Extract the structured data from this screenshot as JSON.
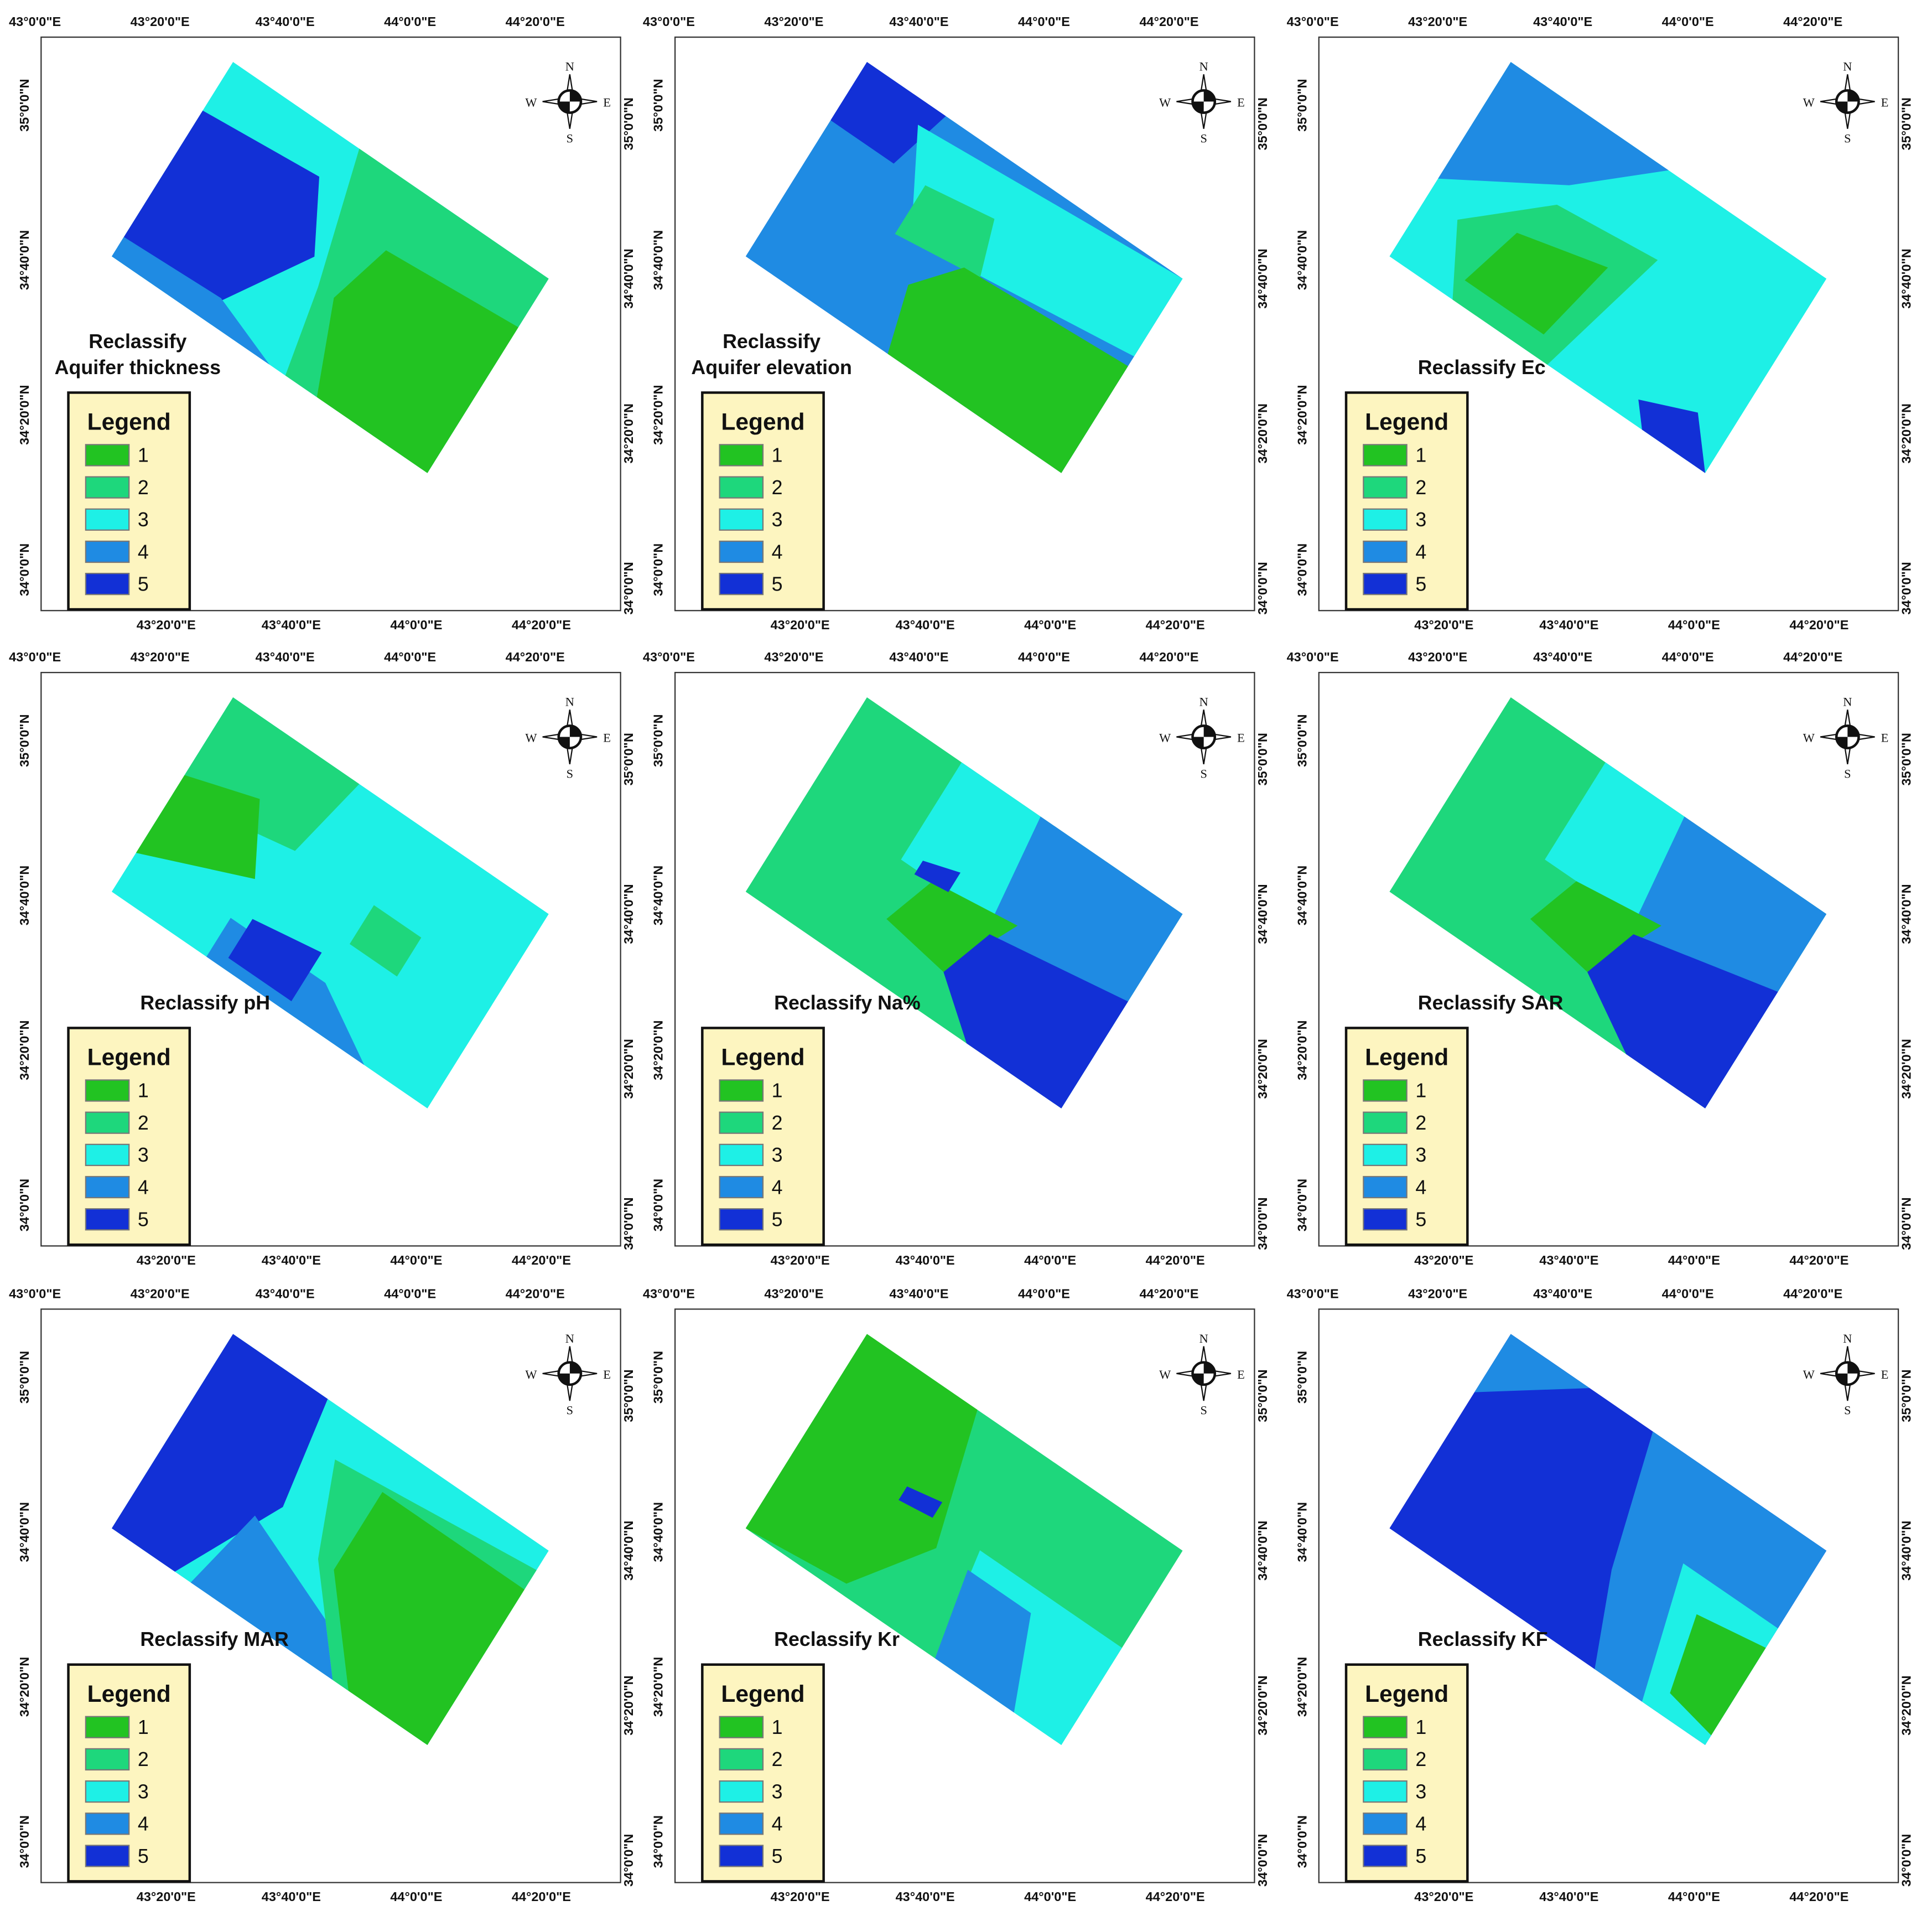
{
  "compass": {
    "n": "N",
    "s": "S",
    "e": "E",
    "w": "W"
  },
  "lon_labels": [
    "43°0'0\"E",
    "43°20'0\"E",
    "43°40'0\"E",
    "44°0'0\"E",
    "44°20'0\"E"
  ],
  "lat_labels": [
    "35°0'0\"N",
    "34°40'0\"N",
    "34°20'0\"N",
    "34°0'0\"N"
  ],
  "legend": {
    "title": "Legend",
    "classes": [
      {
        "label": "1",
        "color": "#22c322"
      },
      {
        "label": "2",
        "color": "#1ed77c"
      },
      {
        "label": "3",
        "color": "#1ef0e6"
      },
      {
        "label": "4",
        "color": "#1f8be3"
      },
      {
        "label": "5",
        "color": "#1230d6"
      }
    ]
  },
  "panels": [
    {
      "title": [
        "Reclassify",
        "Aquifer thickness"
      ]
    },
    {
      "title": [
        "Reclassify",
        "Aquifer elevation"
      ]
    },
    {
      "title": [
        "Reclassify Ec"
      ]
    },
    {
      "title": [
        "Reclassify pH"
      ]
    },
    {
      "title": [
        "Reclassify Na%"
      ]
    },
    {
      "title": [
        "Reclassify SAR"
      ]
    },
    {
      "title": [
        "Reclassify MAR"
      ]
    },
    {
      "title": [
        "Reclassify Kr"
      ]
    },
    {
      "title": [
        "Reclassify KF"
      ]
    }
  ]
}
